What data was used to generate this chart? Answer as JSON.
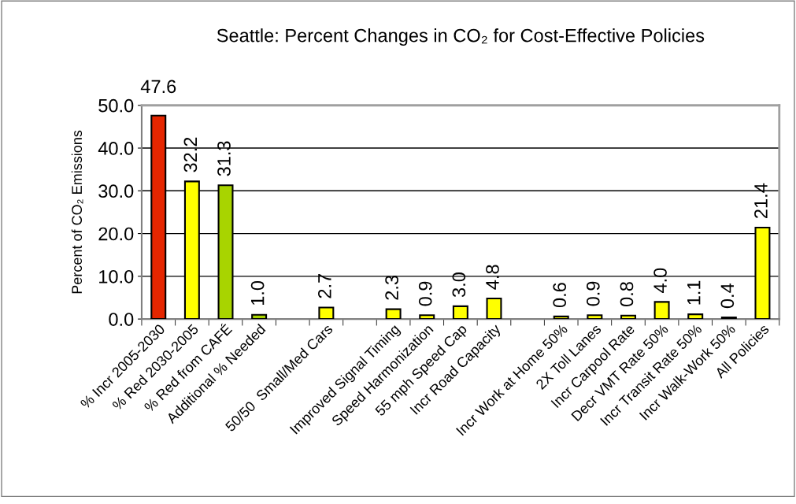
{
  "chart_data": {
    "type": "bar",
    "title": "Seattle: Percent Changes in CO₂ for Cost-Effective Policies",
    "ylabel": "Percent of CO₂ Emissions",
    "categories": [
      "% Incr 2005-2030",
      "% Red 2030-2005",
      "% Red from CAFÉ",
      "Additional % Needed",
      null,
      "50/50  Small/Med Cars",
      null,
      "Improved Signal Timing",
      "Speed Harmonization",
      "55 mph Speed Cap",
      "Incr Road Capacity",
      null,
      "Incr Work at Home 50%",
      "2X Toll Lanes",
      "Incr Carpool Rate",
      "Decr VMT Rate 50%",
      "Incr Transit Rate 50%",
      "Incr Walk-Work 50%",
      "All Policies"
    ],
    "values": [
      47.6,
      32.2,
      31.3,
      1.0,
      null,
      2.7,
      null,
      2.3,
      0.9,
      3.0,
      4.8,
      null,
      0.6,
      0.9,
      0.8,
      4.0,
      1.1,
      0.4,
      21.4
    ],
    "colors": [
      "#e52600",
      "#ffff00",
      "#a8d400",
      "#a8d400",
      null,
      "#ffff00",
      null,
      "#ffff00",
      "#ffff00",
      "#ffff00",
      "#ffff00",
      null,
      "#ffff00",
      "#ffff00",
      "#ffff00",
      "#ffff00",
      "#ffff00",
      "#ffff00",
      "#ffff00"
    ],
    "ylim": [
      0,
      50
    ],
    "yticks": [
      {
        "value": 0,
        "label": "0.0"
      },
      {
        "value": 10,
        "label": "10.0"
      },
      {
        "value": 20,
        "label": "20.0"
      },
      {
        "value": 30,
        "label": "30.0"
      },
      {
        "value": 40,
        "label": "40.0"
      },
      {
        "value": 50,
        "label": "50.0"
      }
    ],
    "value_labels": [
      "47.6",
      "32.2",
      "31.3",
      "1.0",
      null,
      "2.7",
      null,
      "2.3",
      "0.9",
      "3.0",
      "4.8",
      null,
      "0.6",
      "0.9",
      "0.8",
      "4.0",
      "1.1",
      "0.4",
      "21.4"
    ],
    "grid": "y",
    "legend": false
  }
}
